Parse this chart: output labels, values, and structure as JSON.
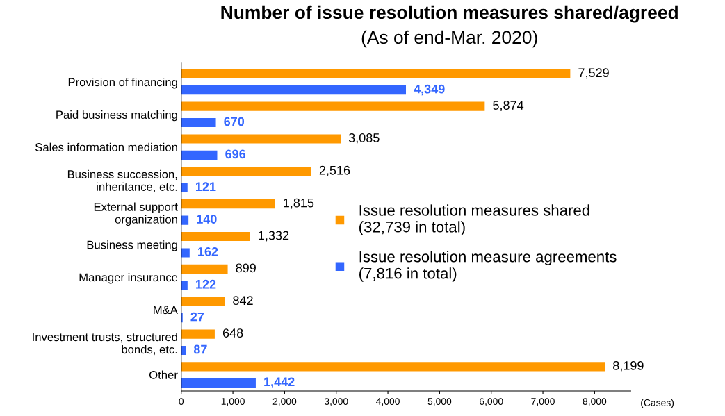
{
  "chart_data": {
    "type": "bar",
    "orientation": "horizontal",
    "title": "Number of issue resolution measures shared/agreed",
    "subtitle": "(As of end-Mar. 2020)",
    "xlabel": "(Cases)",
    "categories": [
      "Provision of financing",
      "Paid business matching",
      "Sales information mediation",
      "Business succession,\ninheritance, etc.",
      "External support\norganization",
      "Business meeting",
      "Manager insurance",
      "M&A",
      "Investment trusts, structured\nbonds, etc.",
      "Other"
    ],
    "series": [
      {
        "name": "Issue resolution measures shared\n(32,739 in total)",
        "color": "#ff9900",
        "values": [
          7529,
          5874,
          3085,
          2516,
          1815,
          1332,
          899,
          842,
          648,
          8199
        ],
        "value_labels": [
          "7,529",
          "5,874",
          "3,085",
          "2,516",
          "1,815",
          "1,332",
          "899",
          "842",
          "648",
          "8,199"
        ]
      },
      {
        "name": "Issue resolution measure agreements\n(7,816 in total)",
        "color": "#3366ff",
        "values": [
          4349,
          670,
          696,
          121,
          140,
          162,
          122,
          27,
          87,
          1442
        ],
        "value_labels": [
          "4,349",
          "670",
          "696",
          "121",
          "140",
          "162",
          "122",
          "27",
          "87",
          "1,442"
        ]
      }
    ],
    "xlim": [
      0,
      8700
    ],
    "xticks": [
      0,
      {
        "value": 1000,
        "label": "1,000"
      },
      {
        "value": 2000,
        "label": "2,000"
      },
      {
        "value": 3000,
        "label": "3,000"
      },
      {
        "value": 4000,
        "label": "4,000"
      },
      {
        "value": 5000,
        "label": "5,000"
      },
      {
        "value": 6000,
        "label": "6,000"
      },
      {
        "value": 7000,
        "label": "7,000"
      },
      {
        "value": 8000,
        "label": "8,000"
      }
    ],
    "grid": false,
    "legend": "right"
  }
}
